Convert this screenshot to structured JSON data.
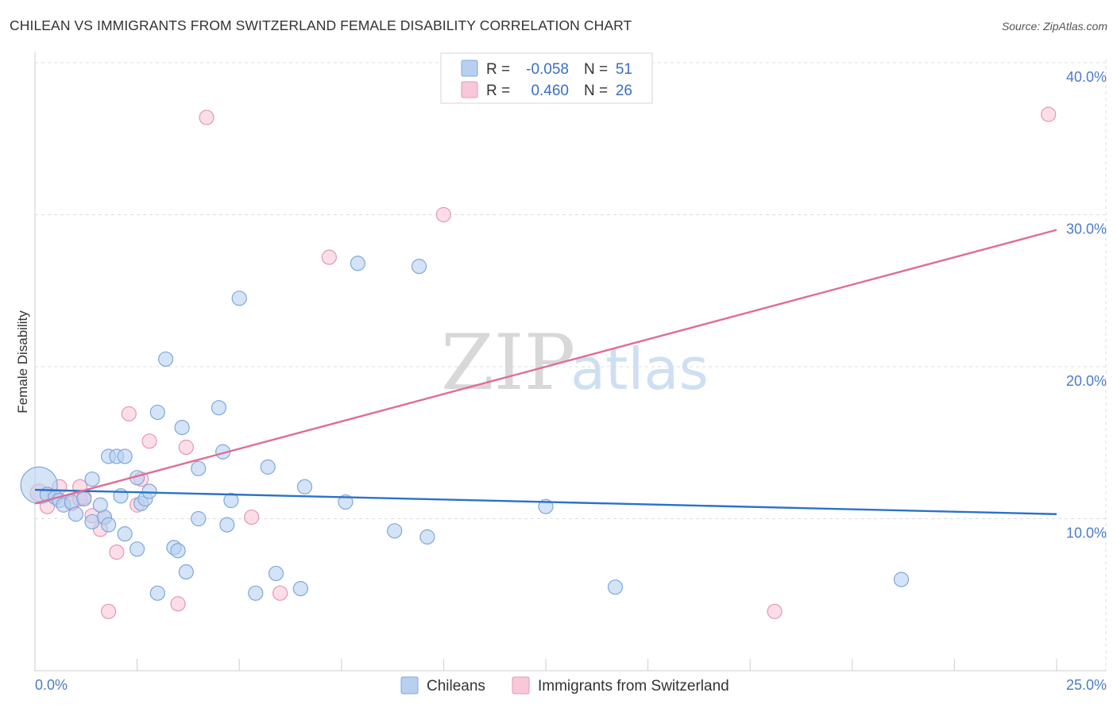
{
  "title": "CHILEAN VS IMMIGRANTS FROM SWITZERLAND FEMALE DISABILITY CORRELATION CHART",
  "source": "Source: ZipAtlas.com",
  "watermark": {
    "zip": "ZIP",
    "atlas": "atlas"
  },
  "colors": {
    "blue_fill": "#b8d0f0",
    "blue_stroke": "#7ea8de",
    "blue_line": "#2b72c8",
    "pink_fill": "#f8c8d8",
    "pink_stroke": "#e896b0",
    "pink_line": "#e06c96",
    "grid": "#dddddd",
    "tick": "#4a7cc9"
  },
  "legend": {
    "rows": [
      {
        "r_label": "R =",
        "r_value": "-0.058",
        "n_label": "N =",
        "n_value": "51"
      },
      {
        "r_label": "R =",
        "r_value": "0.460",
        "n_label": "N =",
        "n_value": "26"
      }
    ]
  },
  "chart_data": {
    "type": "scatter",
    "title": "CHILEAN VS IMMIGRANTS FROM SWITZERLAND FEMALE DISABILITY CORRELATION CHART",
    "xlabel": "",
    "ylabel": "Female Disability",
    "xlim": [
      0,
      25
    ],
    "ylim": [
      0,
      41
    ],
    "x_tick_labels": [
      "0.0%",
      "25.0%"
    ],
    "y_ticks": [
      10,
      20,
      30,
      40
    ],
    "y_tick_labels": [
      "10.0%",
      "20.0%",
      "30.0%",
      "40.0%"
    ],
    "grid": true,
    "legend_position": "top-center",
    "series": [
      {
        "name": "Chileans",
        "color": "#b8d0f0",
        "r": -0.058,
        "n": 51,
        "trend": {
          "x": [
            0,
            25
          ],
          "y": [
            11.9,
            10.3
          ]
        },
        "points": [
          [
            0.1,
            12.2,
            22
          ],
          [
            0.3,
            11.6,
            8
          ],
          [
            0.5,
            11.4,
            8
          ],
          [
            0.6,
            11.2,
            8
          ],
          [
            0.7,
            10.9,
            8
          ],
          [
            0.9,
            11.1,
            8
          ],
          [
            1.0,
            10.3,
            8
          ],
          [
            1.2,
            11.3,
            8
          ],
          [
            1.4,
            9.8,
            8
          ],
          [
            1.7,
            10.1,
            8
          ],
          [
            1.6,
            10.9,
            8
          ],
          [
            1.4,
            12.6,
            8
          ],
          [
            1.8,
            9.6,
            8
          ],
          [
            1.8,
            14.1,
            8
          ],
          [
            2.0,
            14.1,
            8
          ],
          [
            2.1,
            11.5,
            8
          ],
          [
            2.2,
            9.0,
            8
          ],
          [
            2.2,
            14.1,
            8
          ],
          [
            2.5,
            8.0,
            8
          ],
          [
            2.5,
            12.7,
            8
          ],
          [
            2.6,
            11.0,
            8
          ],
          [
            2.7,
            11.3,
            8
          ],
          [
            2.8,
            11.8,
            8
          ],
          [
            3.0,
            17.0,
            8
          ],
          [
            3.0,
            5.1,
            8
          ],
          [
            3.2,
            20.5,
            8
          ],
          [
            3.4,
            8.1,
            8
          ],
          [
            3.5,
            7.9,
            8
          ],
          [
            3.6,
            16.0,
            8
          ],
          [
            3.7,
            6.5,
            8
          ],
          [
            4.0,
            13.3,
            8
          ],
          [
            4.0,
            10.0,
            8
          ],
          [
            4.5,
            17.3,
            8
          ],
          [
            4.6,
            14.4,
            8
          ],
          [
            4.7,
            9.6,
            8
          ],
          [
            4.8,
            11.2,
            8
          ],
          [
            5.0,
            24.5,
            8
          ],
          [
            5.4,
            5.1,
            8
          ],
          [
            5.7,
            13.4,
            8
          ],
          [
            5.9,
            6.4,
            8
          ],
          [
            6.5,
            5.4,
            8
          ],
          [
            6.6,
            12.1,
            8
          ],
          [
            7.6,
            11.1,
            8
          ],
          [
            7.9,
            26.8,
            8
          ],
          [
            8.8,
            9.2,
            8
          ],
          [
            9.4,
            26.6,
            8
          ],
          [
            9.6,
            8.8,
            8
          ],
          [
            12.5,
            10.8,
            8
          ],
          [
            14.2,
            5.5,
            8
          ],
          [
            21.2,
            6.0,
            8
          ]
        ]
      },
      {
        "name": "Immigrants from Switzerland",
        "color": "#f8c8d8",
        "r": 0.46,
        "n": 26,
        "trend": {
          "x": [
            0,
            25
          ],
          "y": [
            11.0,
            29.0
          ]
        },
        "points": [
          [
            0.1,
            11.7,
            10
          ],
          [
            0.3,
            10.8,
            8
          ],
          [
            0.5,
            11.4,
            8
          ],
          [
            0.6,
            12.1,
            8
          ],
          [
            0.9,
            11.0,
            8
          ],
          [
            1.1,
            11.3,
            8
          ],
          [
            1.1,
            12.1,
            8
          ],
          [
            1.2,
            11.4,
            8
          ],
          [
            1.4,
            10.2,
            8
          ],
          [
            1.6,
            9.3,
            8
          ],
          [
            1.7,
            10.1,
            8
          ],
          [
            1.8,
            3.9,
            8
          ],
          [
            2.0,
            7.8,
            8
          ],
          [
            2.3,
            16.9,
            8
          ],
          [
            2.5,
            10.9,
            8
          ],
          [
            2.6,
            12.6,
            8
          ],
          [
            2.8,
            15.1,
            8
          ],
          [
            3.5,
            4.4,
            8
          ],
          [
            3.7,
            14.7,
            8
          ],
          [
            4.2,
            36.4,
            8
          ],
          [
            5.3,
            10.1,
            8
          ],
          [
            6.0,
            5.1,
            8
          ],
          [
            7.2,
            27.2,
            8
          ],
          [
            10.0,
            30.0,
            8
          ],
          [
            18.1,
            3.9,
            8
          ],
          [
            24.8,
            36.6,
            8
          ]
        ]
      }
    ]
  }
}
